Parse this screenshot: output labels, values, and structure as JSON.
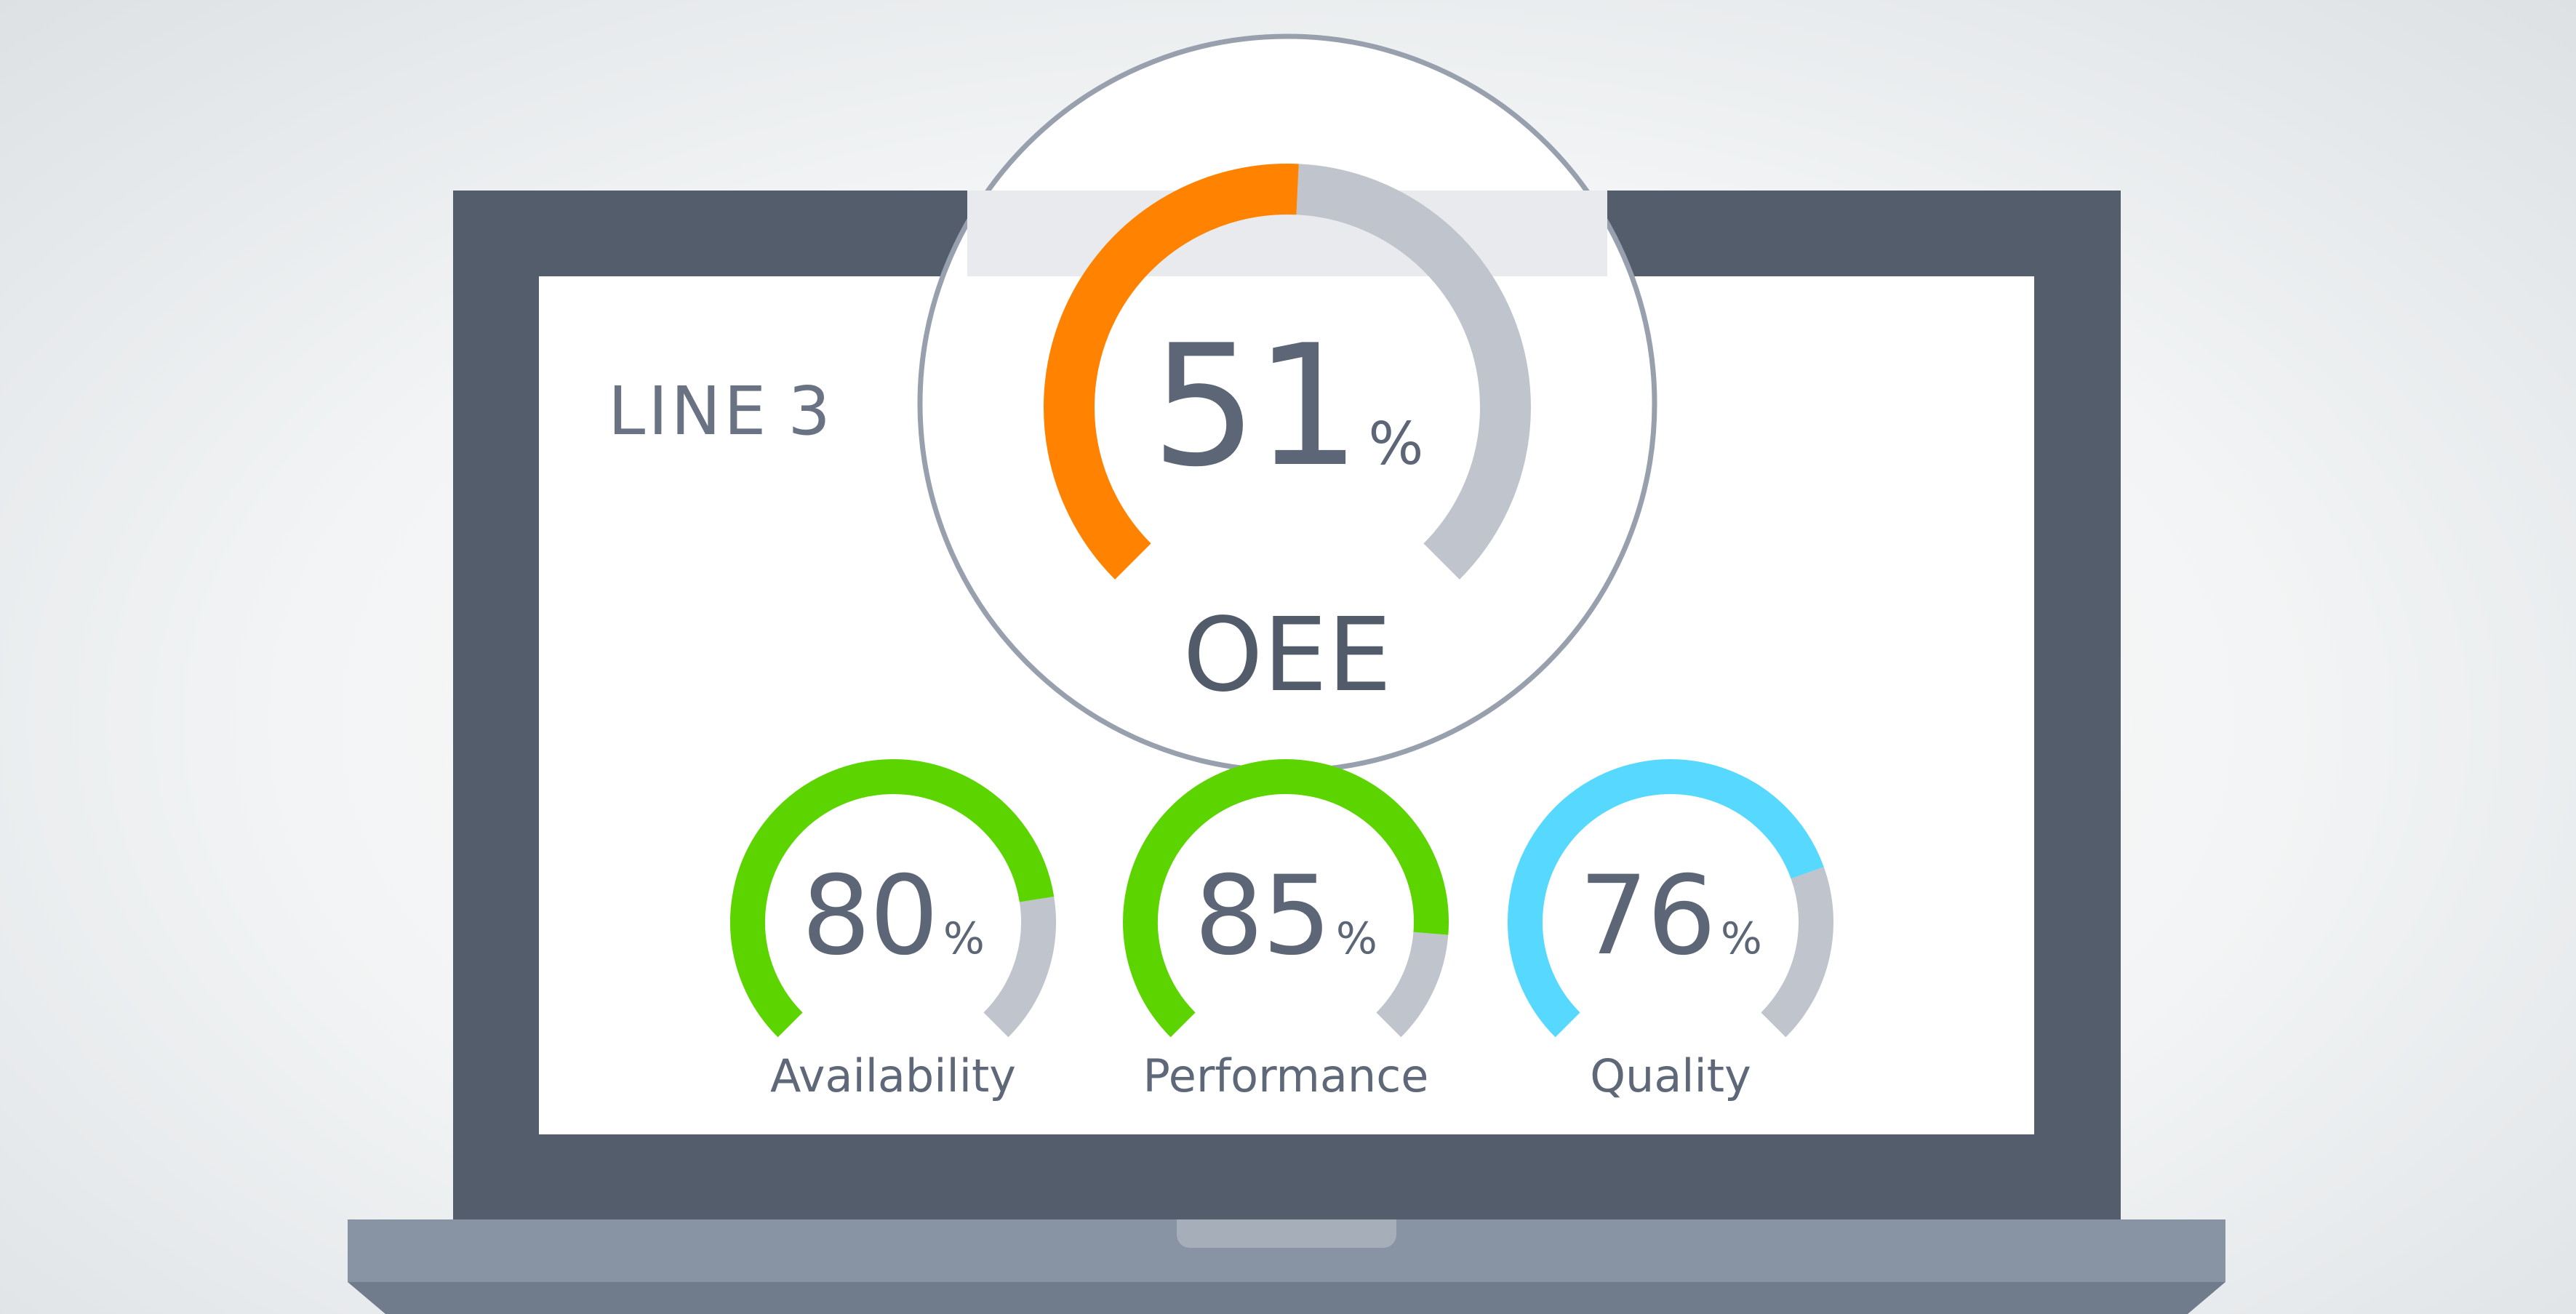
{
  "line_title": {
    "text": "LINE",
    "number": "3"
  },
  "oee": {
    "value": "51",
    "unit": "%",
    "label": "OEE",
    "fraction": 0.51,
    "color": "#ff8200"
  },
  "metrics": [
    {
      "value": "80",
      "unit": "%",
      "label": "Availability",
      "fraction": 0.8,
      "color": "#5cd400"
    },
    {
      "value": "85",
      "unit": "%",
      "label": "Performance",
      "fraction": 0.85,
      "color": "#5cd400"
    },
    {
      "value": "76",
      "unit": "%",
      "label": "Quality",
      "fraction": 0.76,
      "color": "#56d8ff"
    }
  ],
  "colors": {
    "bezel": "#535d6c",
    "screen": "#ffffff",
    "gauge_track": "#c0c4cc",
    "text": "#5d6676",
    "magnifier_ring": "#98a0ae"
  }
}
